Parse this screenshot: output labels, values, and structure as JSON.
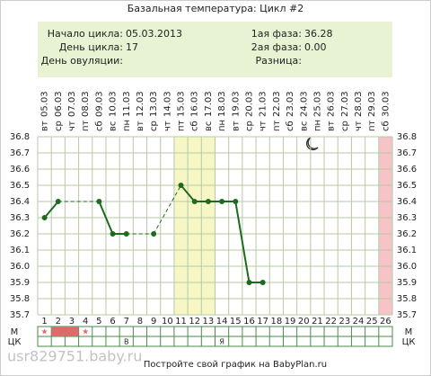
{
  "chart_data": {
    "type": "line",
    "title": "Базальная температура: Цикл #2",
    "info": [
      {
        "label": "Начало цикла:",
        "value": "05.03.2013",
        "label2": "1ая фаза:",
        "value2": "36.28"
      },
      {
        "label": "День цикла:",
        "value": "17",
        "label2": "2ая фаза:",
        "value2": "0.00"
      },
      {
        "label": "День овуляции:",
        "label2": "Разница:"
      }
    ],
    "weekdays": [
      "вт",
      "ср",
      "чт",
      "пт",
      "сб",
      "вс",
      "пн",
      "вт",
      "ср",
      "чт",
      "пт",
      "сб",
      "вс",
      "пн",
      "вт",
      "ср",
      "чт",
      "пт",
      "сб",
      "вс",
      "пн",
      "вт",
      "ср",
      "чт",
      "пт",
      "сб"
    ],
    "dates": [
      "05.03",
      "06.03",
      "07.03",
      "08.03",
      "09.03",
      "10.03",
      "11.03",
      "12.03",
      "13.03",
      "14.03",
      "15.03",
      "16.03",
      "17.03",
      "18.03",
      "19.03",
      "20.03",
      "21.03",
      "22.03",
      "23.03",
      "24.03",
      "25.03",
      "26.03",
      "27.03",
      "28.03",
      "29.03",
      "30.03"
    ],
    "categories": [
      1,
      2,
      3,
      4,
      5,
      6,
      7,
      8,
      9,
      10,
      11,
      12,
      13,
      14,
      15,
      16,
      17,
      18,
      19,
      20,
      21,
      22,
      23,
      24,
      25,
      26
    ],
    "values": [
      36.3,
      36.4,
      null,
      null,
      36.4,
      36.2,
      36.2,
      null,
      36.2,
      null,
      36.5,
      36.4,
      36.4,
      36.4,
      36.4,
      35.9,
      35.9,
      null,
      null,
      null,
      null,
      null,
      null,
      null,
      null,
      null
    ],
    "color": "#1e6b1e",
    "ylim": [
      35.7,
      36.8
    ],
    "yticks": [
      35.7,
      35.8,
      35.9,
      {
        "value": 36,
        "label": "36.0"
      },
      36.1,
      36.2,
      36.3,
      36.4,
      36.5,
      36.6,
      36.7,
      36.8
    ],
    "grid": true,
    "highlight_days": [
      11,
      12,
      13
    ],
    "highlight_color": "#f7f7c6",
    "marked_days": [
      26
    ],
    "marked_color": "#f6c3c6",
    "m_row": {
      "label": "М",
      "stars": [
        1,
        4
      ],
      "star": "★",
      "fill_days": [
        2,
        3
      ],
      "fill_color": "#e06a6a"
    },
    "ck_row": {
      "label": "ЦК",
      "marks": [
        {
          "day": 7,
          "text": "В"
        },
        {
          "day": 14,
          "text": "Я"
        }
      ]
    },
    "footer": "Постройте свой график на BabyPlan.ru",
    "watermark": "usr829751.baby.ru"
  }
}
